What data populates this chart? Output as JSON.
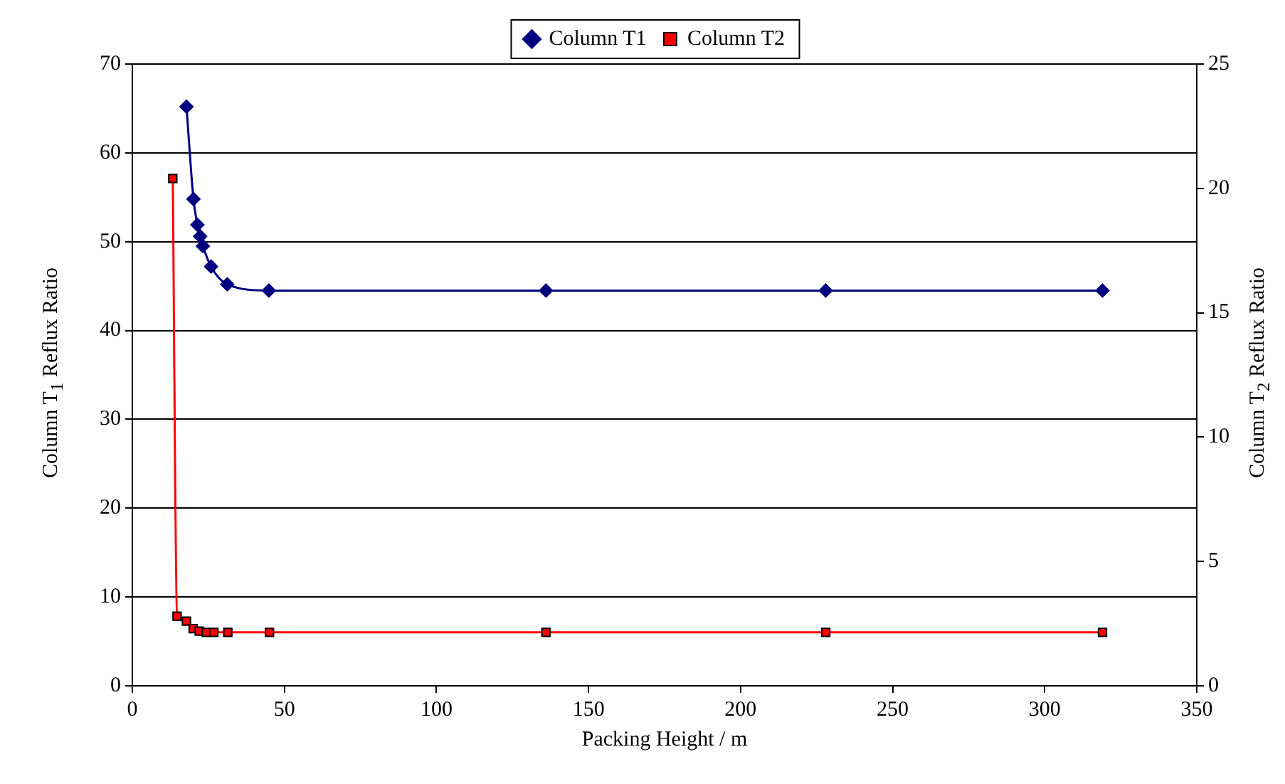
{
  "chart_data": {
    "type": "line",
    "xlabel": "Packing Height / m",
    "ylabel": "Column T$_{1}$ Reflux Ratio",
    "y2label": "Column T$_{2}$ Reflux Ratio",
    "xlim": [
      0,
      350
    ],
    "xticks": [
      0,
      50,
      100,
      150,
      200,
      250,
      300,
      350
    ],
    "ylim": [
      0,
      70
    ],
    "yticks": [
      0,
      10,
      20,
      30,
      40,
      50,
      60,
      70
    ],
    "y2lim": [
      0,
      25
    ],
    "y2ticks": [
      0,
      5,
      10,
      15,
      20,
      25
    ],
    "grid": "y",
    "legend": "top",
    "line_style": "solid",
    "series": [
      {
        "name": "Column T1",
        "color": "#000080",
        "marker": "diamond",
        "x": [
          17.8,
          20.1,
          21.4,
          22.3,
          23.2,
          25.9,
          31.2,
          44.9,
          136,
          228,
          319
        ],
        "values": [
          65.2,
          54.8,
          51.9,
          50.6,
          49.5,
          47.2,
          45.2,
          44.5,
          44.5,
          44.5,
          44.5
        ]
      },
      {
        "name": "Column T2",
        "color": "#ff0000",
        "marker": "square",
        "axis": "y2",
        "x": [
          13.3,
          14.7,
          17.8,
          20.0,
          22.0,
          24.3,
          26.8,
          31.4,
          45.1,
          136,
          228,
          319
        ],
        "values": [
          20.4,
          2.8,
          2.6,
          2.3,
          2.2,
          2.15,
          2.15,
          2.15,
          2.15,
          2.15,
          2.15,
          2.15
        ]
      }
    ]
  }
}
